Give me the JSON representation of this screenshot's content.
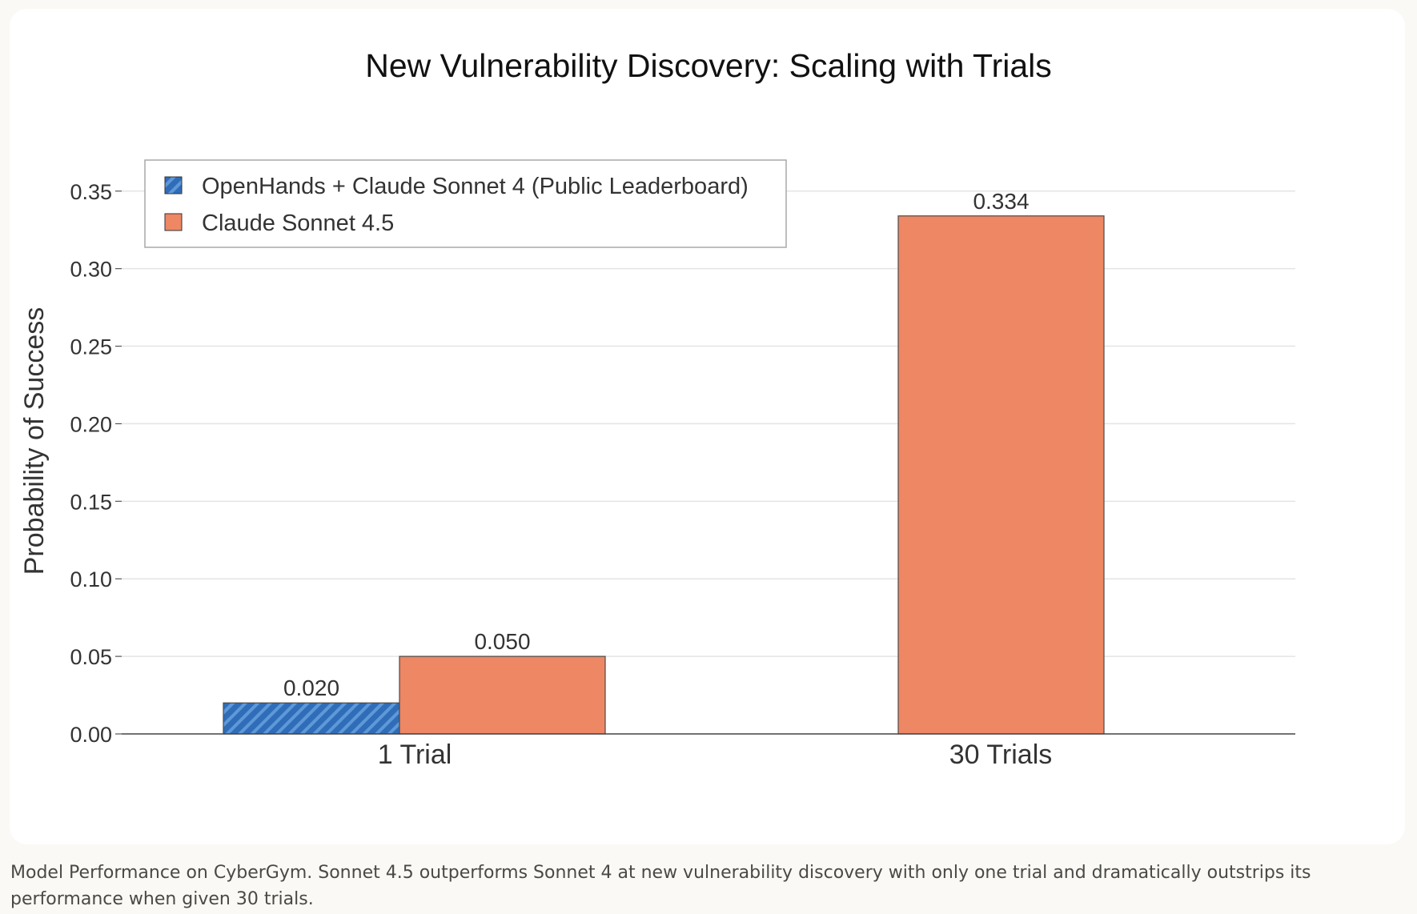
{
  "caption": "Model Performance on CyberGym. Sonnet 4.5 outperforms Sonnet 4 at new vulnerability discovery with only one trial and dramatically outstrips its performance when given 30 trials.",
  "chart_data": {
    "type": "bar",
    "title": "New Vulnerability Discovery: Scaling with Trials",
    "xlabel": "",
    "ylabel": "Probability of Success",
    "ylim": [
      0,
      0.37
    ],
    "yticks": [
      0.0,
      0.05,
      0.1,
      0.15,
      0.2,
      0.25,
      0.3,
      0.35
    ],
    "ytick_labels": [
      "0.00",
      "0.05",
      "0.10",
      "0.15",
      "0.20",
      "0.25",
      "0.30",
      "0.35"
    ],
    "categories": [
      "1 Trial",
      "30 Trials"
    ],
    "grid": true,
    "legend_position": "top-left",
    "series": [
      {
        "name": "OpenHands + Claude Sonnet 4 (Public Leaderboard)",
        "values": [
          0.02,
          null
        ],
        "labels": [
          "0.020",
          null
        ],
        "color": "#2f6db8",
        "hatch": true
      },
      {
        "name": "Claude Sonnet 4.5",
        "values": [
          0.05,
          0.334
        ],
        "labels": [
          "0.050",
          "0.334"
        ],
        "color": "#ed8764",
        "hatch": false
      }
    ]
  }
}
